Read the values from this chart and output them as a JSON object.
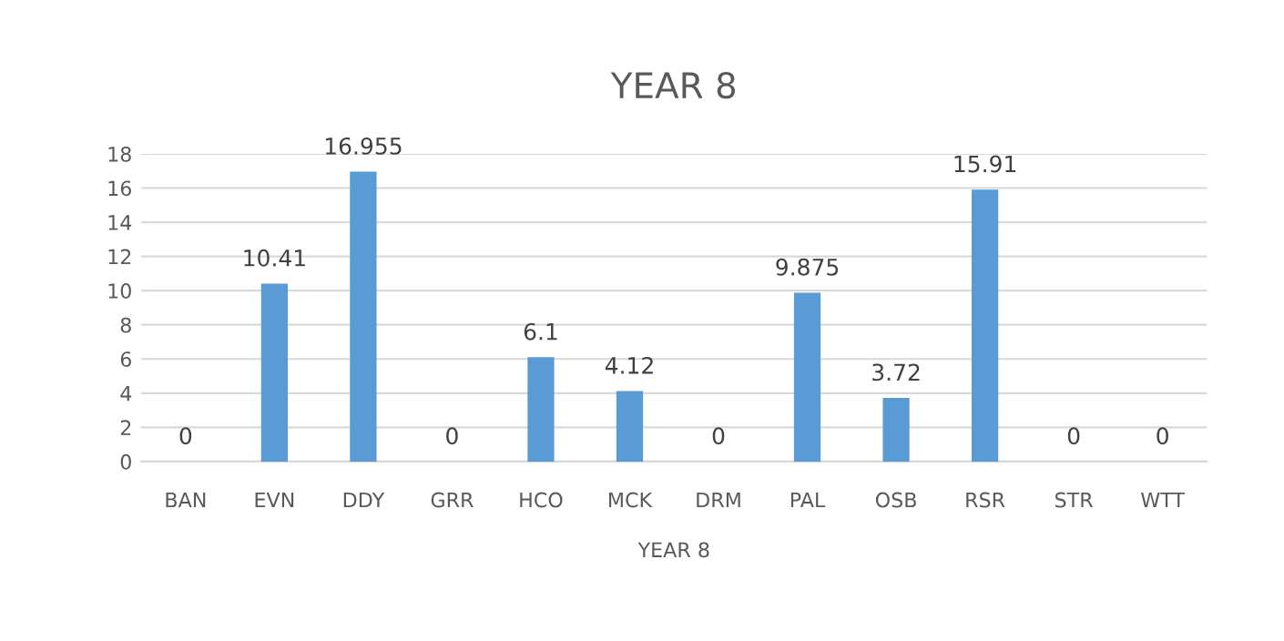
{
  "chart_data": {
    "type": "bar",
    "title": "YEAR 8",
    "xlabel": "YEAR 8",
    "categories": [
      "BAN",
      "EVN",
      "DDY",
      "GRR",
      "HCO",
      "MCK",
      "DRM",
      "PAL",
      "OSB",
      "RSR",
      "STR",
      "WTT"
    ],
    "values": [
      0,
      10.41,
      16.955,
      0,
      6.1,
      4.12,
      0,
      9.875,
      3.72,
      15.91,
      0,
      0
    ],
    "color": "#5b9bd5",
    "ylim": [
      0,
      18
    ],
    "yticks": [
      0,
      2,
      4,
      6,
      8,
      10,
      12,
      14,
      16,
      18
    ],
    "grid": "y",
    "data_labels": true
  }
}
